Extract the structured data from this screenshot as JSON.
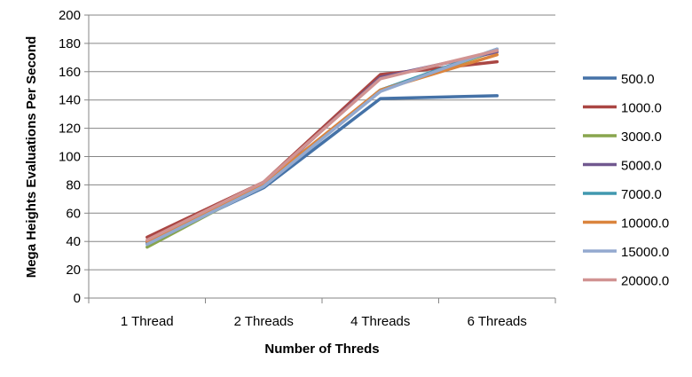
{
  "chart_data": {
    "type": "line",
    "title": "",
    "xlabel": "Number of Threds",
    "ylabel": "Mega Heights Evaluations Per Second",
    "categories": [
      "1 Thread",
      "2 Threads",
      "4 Threads",
      "6 Threads"
    ],
    "ylim": [
      0,
      200
    ],
    "yticks": [
      0,
      20,
      40,
      60,
      80,
      100,
      120,
      140,
      160,
      180,
      200
    ],
    "grid": "horizontal",
    "legend_position": "right",
    "series": [
      {
        "name": "500.0",
        "color": "#4572A7",
        "values": [
          39,
          78,
          141,
          143
        ]
      },
      {
        "name": "1000.0",
        "color": "#AA4643",
        "values": [
          43,
          82,
          158,
          167
        ]
      },
      {
        "name": "3000.0",
        "color": "#89A54E",
        "values": [
          36,
          80,
          147,
          175
        ]
      },
      {
        "name": "5000.0",
        "color": "#71588F",
        "values": [
          40,
          81,
          156,
          174
        ]
      },
      {
        "name": "7000.0",
        "color": "#4198AF",
        "values": [
          38,
          79,
          147,
          176
        ]
      },
      {
        "name": "10000.0",
        "color": "#DB843D",
        "values": [
          40,
          81,
          147,
          172
        ]
      },
      {
        "name": "15000.0",
        "color": "#93A9CF",
        "values": [
          38,
          79,
          146,
          176
        ]
      },
      {
        "name": "20000.0",
        "color": "#D19392",
        "values": [
          41,
          82,
          155,
          175
        ]
      }
    ]
  }
}
